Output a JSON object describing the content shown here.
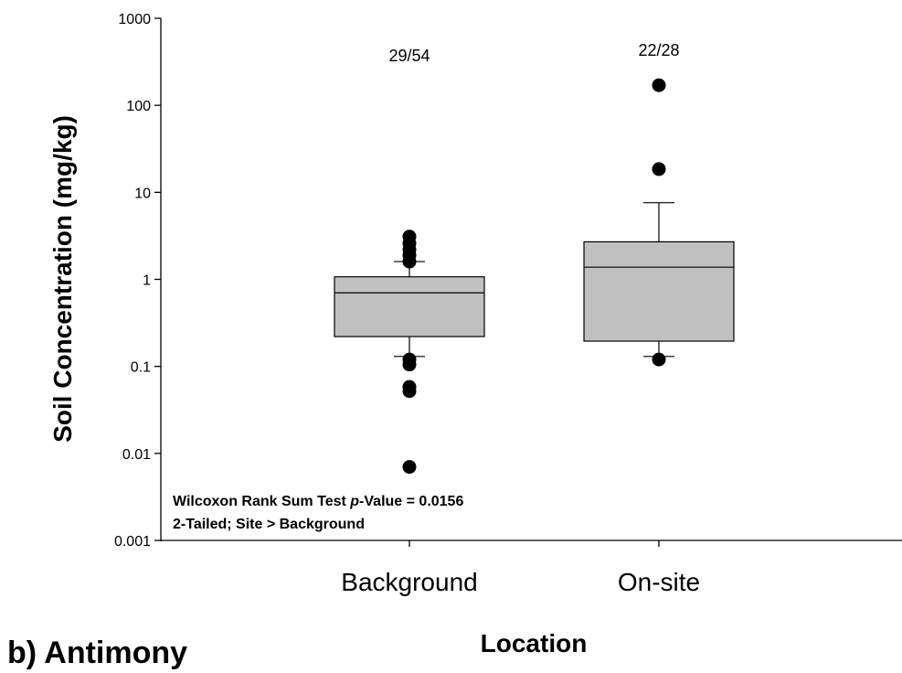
{
  "panel_label": "b) Antimony",
  "note": {
    "line1_prefix": "Wilcoxon Rank Sum Test ",
    "line1_italic": "p",
    "line1_suffix": "-Value = 0.0156",
    "line2": "2-Tailed; Site > Background"
  },
  "chart_data": {
    "type": "box",
    "xlabel": "Location",
    "ylabel": "Soil Concentration (mg/kg)",
    "yscale": "log",
    "ylim": [
      0.001,
      1000
    ],
    "yticks": [
      0.001,
      0.01,
      0.1,
      1,
      10,
      100,
      1000
    ],
    "ytick_labels": [
      "0.001",
      "0.01",
      "0.1",
      "1",
      "10",
      "100",
      "1000"
    ],
    "categories": [
      "Background",
      "On-site"
    ],
    "boxes": [
      {
        "category": "Background",
        "detect_ratio": "29/54",
        "whisker_low": 0.13,
        "q1": 0.22,
        "median": 0.7,
        "q3": 1.07,
        "whisker_high": 1.6,
        "outliers": [
          3.1,
          2.6,
          2.2,
          1.9,
          1.6,
          0.12,
          0.105,
          0.058,
          0.052,
          0.007
        ]
      },
      {
        "category": "On-site",
        "detect_ratio": "22/28",
        "whisker_low": 0.13,
        "q1": 0.195,
        "median": 1.38,
        "q3": 2.7,
        "whisker_high": 7.6,
        "outliers": [
          170,
          18.5,
          0.12
        ]
      }
    ]
  }
}
